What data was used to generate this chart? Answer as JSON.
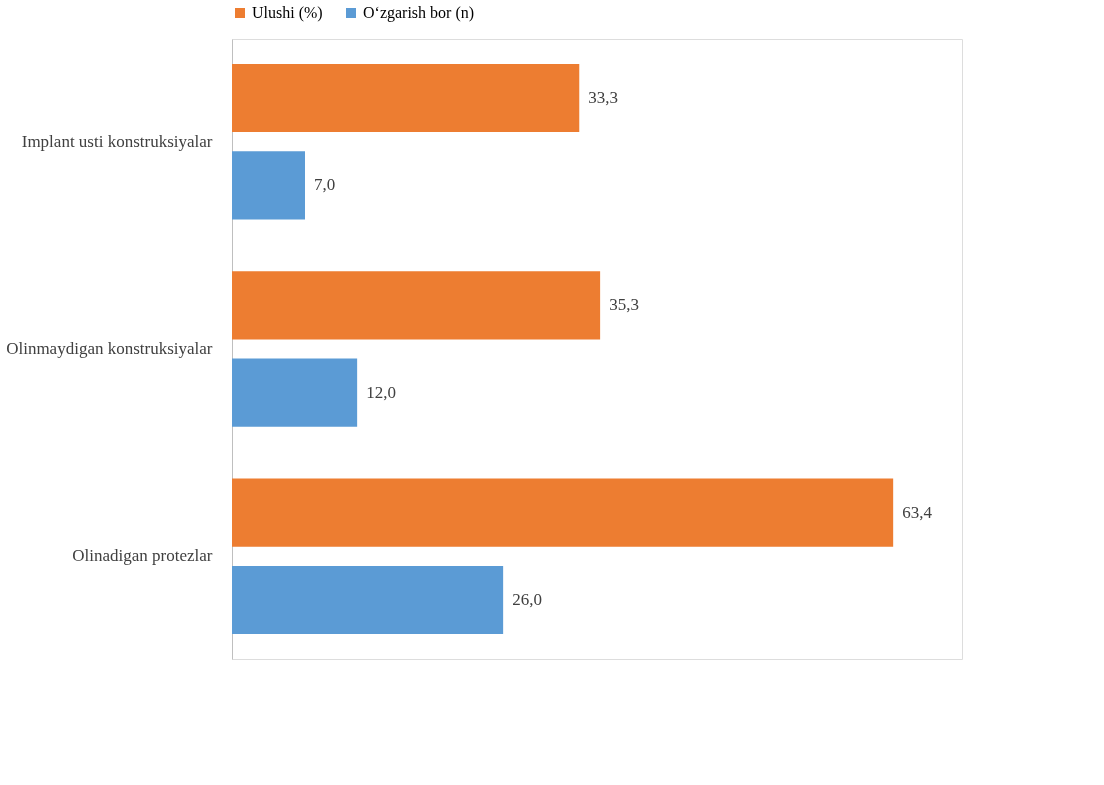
{
  "chart_data": {
    "type": "bar",
    "orientation": "horizontal",
    "categories": [
      "Implant usti konstruksiyalar",
      "Olinmaydigan konstruksiyalar",
      "Olinadigan protezlar"
    ],
    "series": [
      {
        "name": "Ulushi (%)",
        "color": "#ed7d31",
        "values": [
          33.3,
          35.3,
          63.4
        ],
        "value_labels": [
          "33,3",
          "35,3",
          "63,4"
        ]
      },
      {
        "name": "O‘zgarish bor (n)",
        "color": "#5b9bd5",
        "values": [
          7.0,
          12.0,
          26.0
        ],
        "value_labels": [
          "7,0",
          "12,0",
          "26,0"
        ]
      }
    ],
    "xlim": [
      0,
      70
    ],
    "tick_labels": "y",
    "legend": "top"
  }
}
